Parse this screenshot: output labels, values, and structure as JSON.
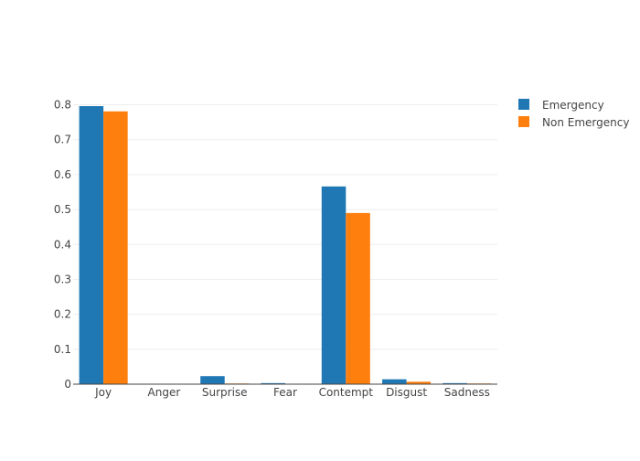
{
  "chart_data": {
    "type": "bar",
    "categories": [
      "Joy",
      "Anger",
      "Surprise",
      "Fear",
      "Contempt",
      "Disgust",
      "Sadness"
    ],
    "series": [
      {
        "name": "Emergency",
        "color": "#1f77b4",
        "values": [
          0.796,
          0.001,
          0.023,
          0.003,
          0.566,
          0.014,
          0.003
        ]
      },
      {
        "name": "Non Emergency",
        "color": "#ff7f0e",
        "values": [
          0.781,
          0.001,
          0.002,
          0.001,
          0.49,
          0.007,
          0.002
        ]
      }
    ],
    "y_ticks": [
      0,
      0.1,
      0.2,
      0.3,
      0.4,
      0.5,
      0.6,
      0.7,
      0.8
    ],
    "ylim": [
      0,
      0.8
    ],
    "grid": true,
    "legend_position": "top-right",
    "title": "",
    "xlabel": "",
    "ylabel": ""
  }
}
